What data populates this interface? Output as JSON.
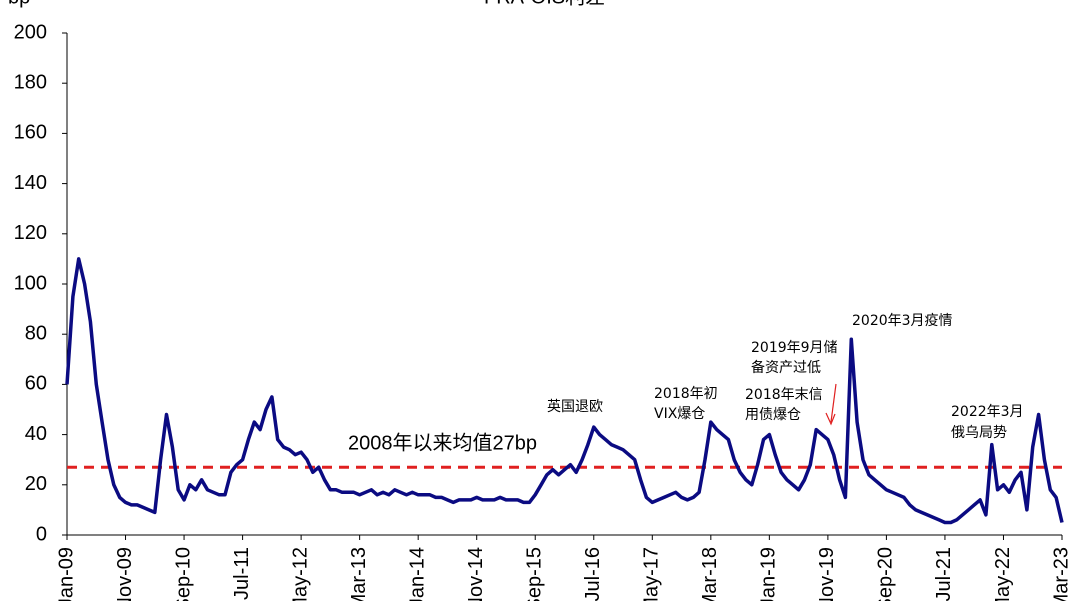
{
  "chart_data": {
    "type": "line",
    "y_label": "bp",
    "categories": [
      "Jan-09",
      null,
      null,
      null,
      null,
      null,
      null,
      null,
      null,
      null,
      "Nov-09",
      null,
      null,
      null,
      null,
      null,
      null,
      null,
      null,
      null,
      "Sep-10",
      null,
      null,
      null,
      null,
      null,
      null,
      null,
      null,
      null,
      "Jul-11",
      null,
      null,
      null,
      null,
      null,
      null,
      null,
      null,
      null,
      "May-12",
      null,
      null,
      null,
      null,
      null,
      null,
      null,
      null,
      null,
      "Mar-13",
      null,
      null,
      null,
      null,
      null,
      null,
      null,
      null,
      null,
      "Jan-14",
      null,
      null,
      null,
      null,
      null,
      null,
      null,
      null,
      null,
      "Nov-14",
      null,
      null,
      null,
      null,
      null,
      null,
      null,
      null,
      null,
      "Sep-15",
      null,
      null,
      null,
      null,
      null,
      null,
      null,
      null,
      null,
      "Jul-16",
      null,
      null,
      null,
      null,
      null,
      null,
      null,
      null,
      null,
      "May-17",
      null,
      null,
      null,
      null,
      null,
      null,
      null,
      null,
      null,
      "Mar-18",
      null,
      null,
      null,
      null,
      null,
      null,
      null,
      null,
      null,
      "Jan-19",
      null,
      null,
      null,
      null,
      null,
      null,
      null,
      null,
      null,
      "Nov-19",
      null,
      null,
      null,
      null,
      null,
      null,
      null,
      null,
      null,
      "Sep-20",
      null,
      null,
      null,
      null,
      null,
      null,
      null,
      null,
      null,
      "Jul-21",
      null,
      null,
      null,
      null,
      null,
      null,
      null,
      null,
      null,
      "May-22",
      null,
      null,
      null,
      null,
      null,
      null,
      null,
      null,
      null,
      "Mar-23"
    ],
    "series": [
      {
        "name": "FRA-OIS利差",
        "color": "#0b0b82",
        "values": [
          60,
          95,
          110,
          100,
          85,
          60,
          45,
          30,
          20,
          15,
          13,
          12,
          12,
          11,
          10,
          9,
          30,
          48,
          35,
          18,
          14,
          20,
          18,
          22,
          18,
          17,
          16,
          16,
          25,
          28,
          30,
          38,
          45,
          42,
          50,
          55,
          38,
          35,
          34,
          32,
          33,
          30,
          25,
          27,
          22,
          18,
          18,
          17,
          17,
          17,
          16,
          17,
          18,
          16,
          17,
          16,
          18,
          17,
          16,
          17,
          16,
          16,
          16,
          15,
          15,
          14,
          13,
          14,
          14,
          14,
          15,
          14,
          14,
          14,
          15,
          14,
          14,
          14,
          13,
          13,
          16,
          20,
          24,
          26,
          24,
          26,
          28,
          25,
          30,
          36,
          43,
          40,
          38,
          36,
          35,
          34,
          32,
          30,
          22,
          15,
          13,
          14,
          15,
          16,
          17,
          15,
          14,
          15,
          17,
          30,
          45,
          42,
          40,
          38,
          30,
          25,
          22,
          20,
          28,
          38,
          40,
          32,
          25,
          22,
          20,
          18,
          22,
          28,
          42,
          40,
          38,
          32,
          22,
          15,
          78,
          45,
          30,
          24,
          22,
          20,
          18,
          17,
          16,
          15,
          12,
          10,
          9,
          8,
          7,
          6,
          5,
          5,
          6,
          8,
          10,
          12,
          14,
          8,
          36,
          18,
          20,
          17,
          22,
          25,
          10,
          35,
          48,
          30,
          18,
          15,
          5
        ]
      }
    ],
    "ylim": [
      0,
      200
    ],
    "yticks": [
      0,
      20,
      40,
      60,
      80,
      100,
      120,
      140,
      160,
      180,
      200
    ],
    "mean_line": {
      "value": 27,
      "label": "2008年以来均值27bp",
      "color": "#e02020"
    },
    "annotations": [
      {
        "lines": [
          "英国退欧"
        ]
      },
      {
        "lines": [
          "2018年初",
          "VIX爆仓"
        ]
      },
      {
        "lines": [
          "2018年末信",
          "用债爆仓"
        ]
      },
      {
        "lines": [
          "2019年9月储",
          "备资产过低"
        ]
      },
      {
        "lines": [
          "2020年3月疫情"
        ]
      },
      {
        "lines": [
          "2022年3月",
          "俄乌局势"
        ]
      }
    ]
  }
}
